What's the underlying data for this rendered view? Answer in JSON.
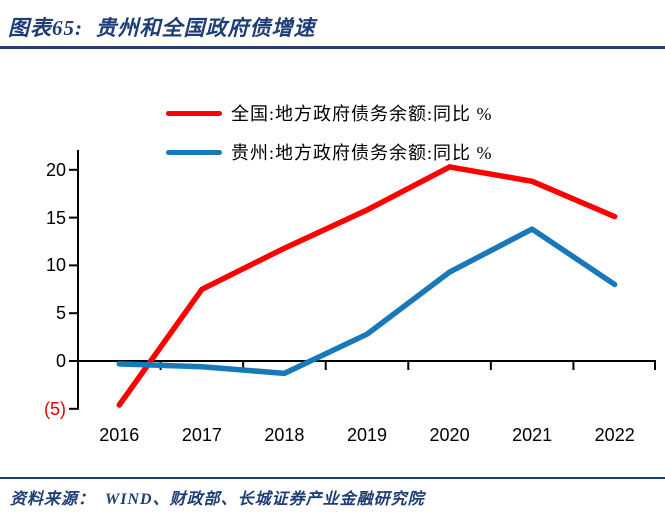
{
  "header": {
    "title": "图表65:  贵州和全国政府债增速"
  },
  "footer": {
    "source": "资料来源：  WIND、财政部、长城证券产业金融研究院"
  },
  "colors": {
    "accent_navy": "#1f3e75",
    "axis_black": "#000000",
    "negative_red": "#e60000",
    "national_red": "#fe0000",
    "guizhou_blue": "#1878b8"
  },
  "chart_data": {
    "type": "line",
    "title": "贵州和全国政府债增速",
    "categories": [
      "2016",
      "2017",
      "2018",
      "2019",
      "2020",
      "2021",
      "2022"
    ],
    "series": [
      {
        "name": "全国:地方政府债务余额:同比 %",
        "color": "#fe0000",
        "values": [
          -4.6,
          7.5,
          11.8,
          15.8,
          20.3,
          18.8,
          15.1
        ]
      },
      {
        "name": "贵州:地方政府债务余额:同比 %",
        "color": "#1878b8",
        "values": [
          -0.3,
          -0.6,
          -1.3,
          2.8,
          9.3,
          13.8,
          8.0
        ]
      }
    ],
    "xlabel": "",
    "ylabel": "",
    "ylim": [
      -5,
      22
    ],
    "grid": false,
    "legend_position": "top-center",
    "y_ticks": [
      {
        "value": 20,
        "label": "20",
        "negative": false
      },
      {
        "value": 15,
        "label": "15",
        "negative": false
      },
      {
        "value": 10,
        "label": "10",
        "negative": false
      },
      {
        "value": 5,
        "label": "5",
        "negative": false
      },
      {
        "value": 0,
        "label": "0",
        "negative": false
      },
      {
        "value": -5,
        "label": "(5)",
        "negative": true
      }
    ]
  }
}
